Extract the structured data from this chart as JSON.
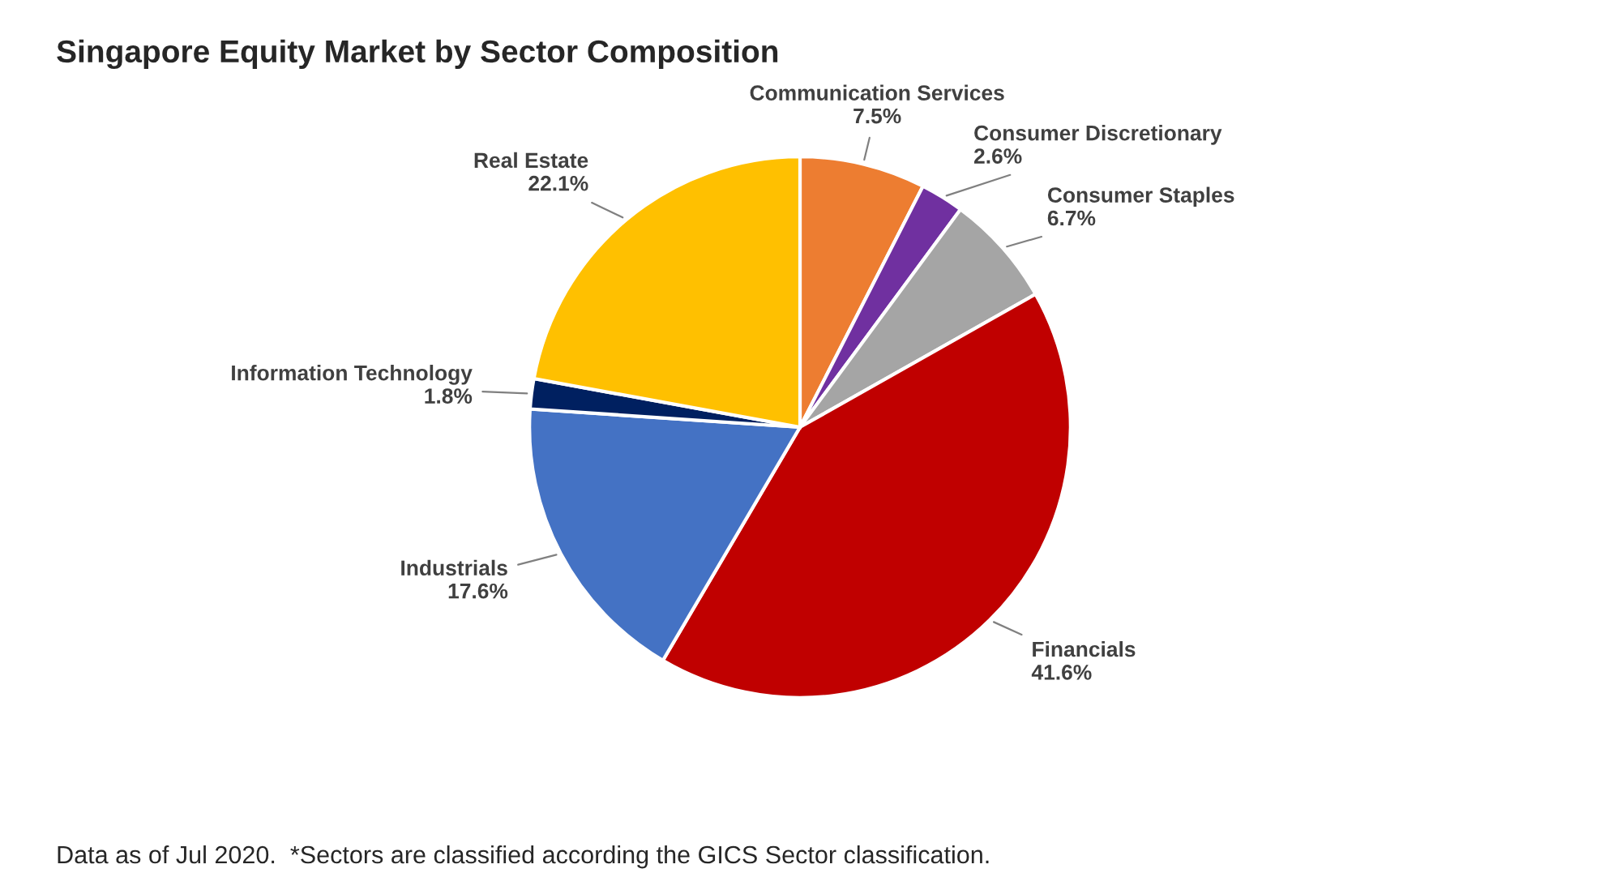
{
  "chart_data": {
    "type": "pie",
    "title": "Singapore Equity Market by Sector Composition",
    "categories": [
      "Communication Services",
      "Consumer Discretionary",
      "Consumer Staples",
      "Financials",
      "Industrials",
      "Information Technology",
      "Real Estate"
    ],
    "values": [
      7.5,
      2.6,
      6.7,
      41.6,
      17.6,
      1.8,
      22.1
    ],
    "colors": [
      "#ed7d31",
      "#7030a0",
      "#a5a5a5",
      "#c00000",
      "#4472c4",
      "#002060",
      "#ffc000"
    ],
    "value_labels": [
      "7.5%",
      "2.6%",
      "6.7%",
      "41.6%",
      "17.6%",
      "1.8%",
      "22.1%"
    ],
    "legend": false,
    "annotations": [
      "Data as of Jul 2020.  *Sectors are classified according the GICS Sector classification."
    ]
  }
}
